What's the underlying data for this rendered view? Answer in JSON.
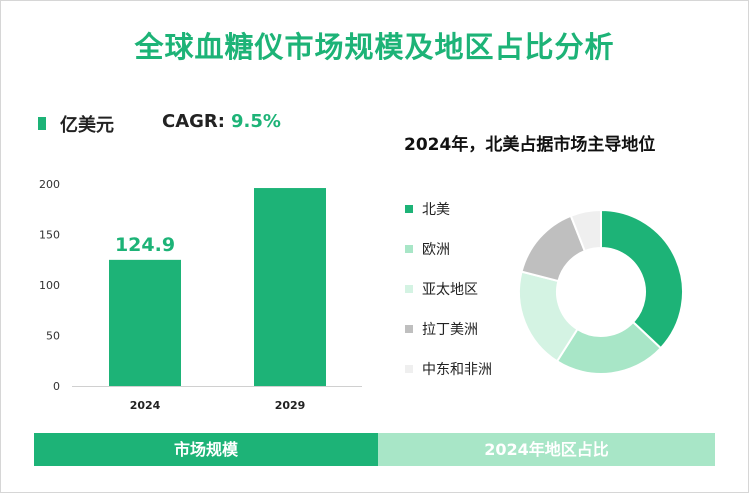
{
  "title": "全球血糖仪市场规模及地区占比分析",
  "colors": {
    "accent": "#1db377",
    "light_accent": "#a8e6c7"
  },
  "footer": {
    "left_label": "市场规模",
    "right_label": "2024年地区占比"
  },
  "chart_data": [
    {
      "type": "bar",
      "unit_label": "亿美元",
      "cagr_label": "CAGR:",
      "cagr_value": "9.5%",
      "categories": [
        "2024",
        "2029"
      ],
      "values": [
        124.9,
        196
      ],
      "data_labels": [
        "124.9",
        ""
      ],
      "ylim": [
        0,
        200
      ],
      "yticks": [
        "0",
        "50",
        "100",
        "150",
        "200"
      ],
      "bar_color": "#1db377"
    },
    {
      "type": "pie",
      "title": "2024年，北美占据市场主导地位",
      "labels": [
        "北美",
        "欧洲",
        "亚太地区",
        "拉丁美洲",
        "中东和非洲"
      ],
      "values": [
        37,
        22,
        20,
        15,
        6
      ],
      "colors": [
        "#1db377",
        "#a8e6c7",
        "#d4f3e3",
        "#bfbfbf",
        "#efefef"
      ]
    }
  ]
}
